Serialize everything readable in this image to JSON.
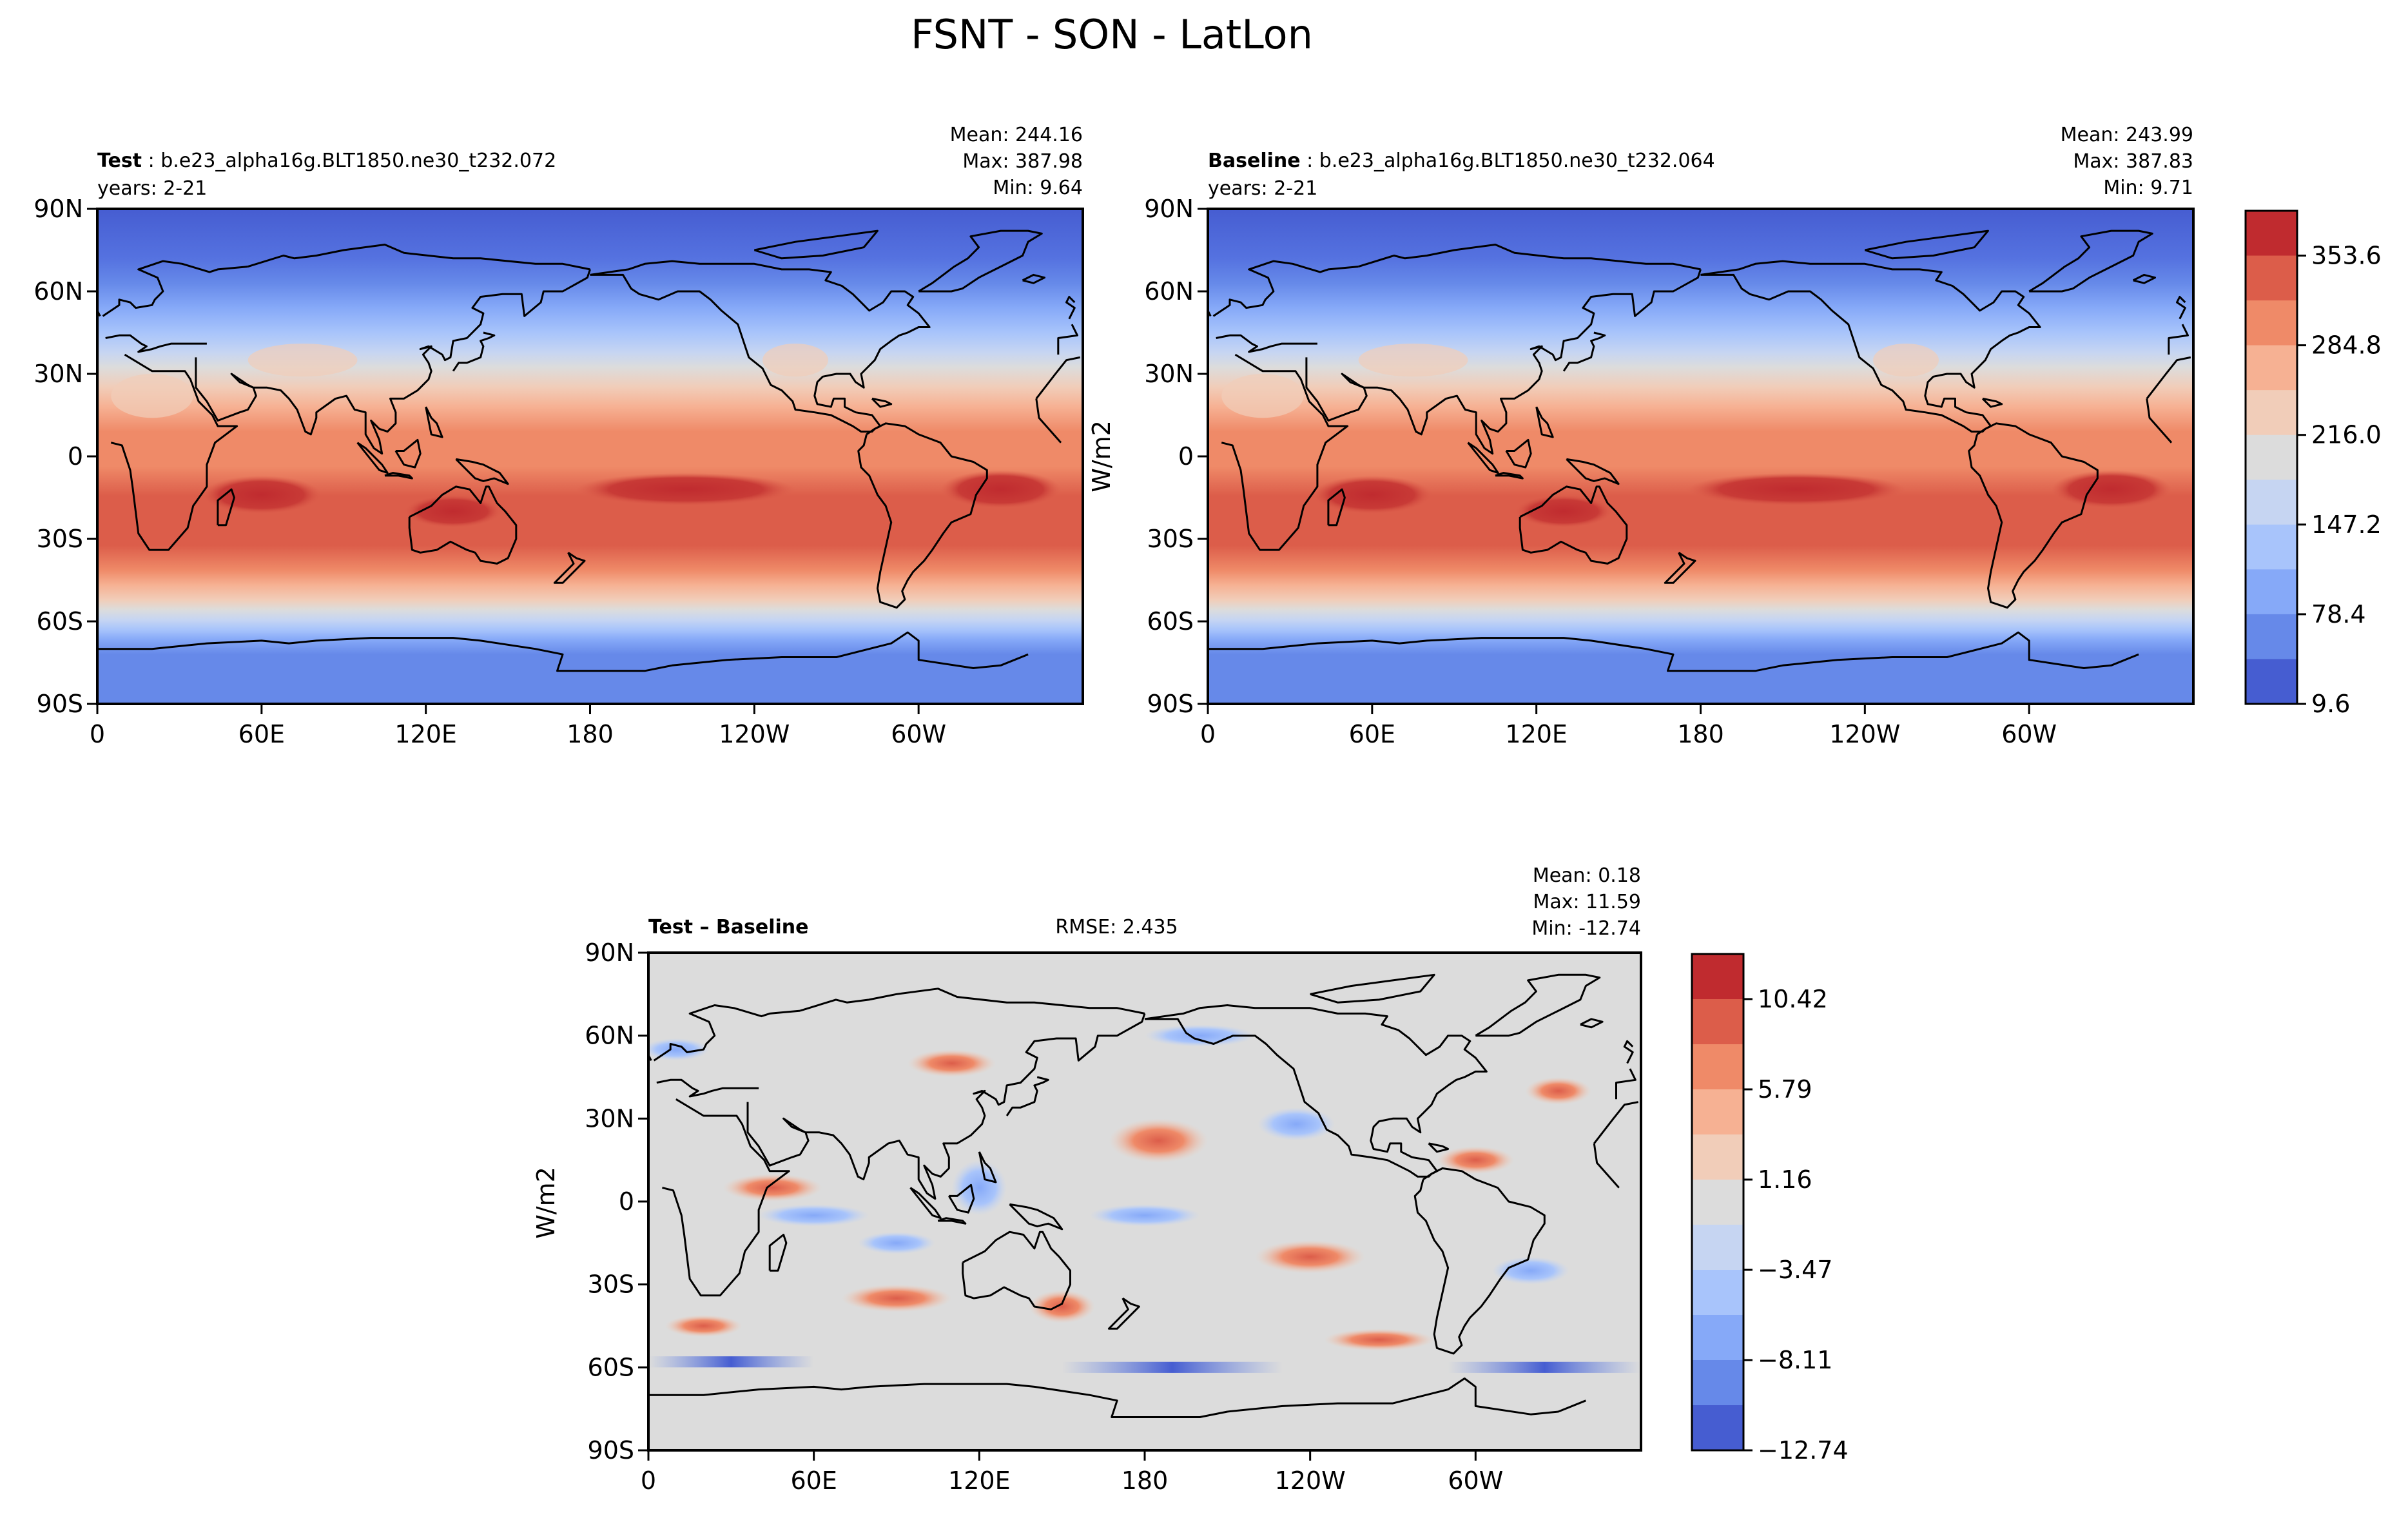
{
  "figure": {
    "title": "FSNT - SON - LatLon"
  },
  "chart_data": [
    {
      "type": "heatmap",
      "panel": "test",
      "label_bold": "Test",
      "label_rest": " : b.e23_alpha16g.BLT1850.ne30_t232.072",
      "years": "years: 2-21",
      "stats": [
        "Mean: 244.16",
        "Max: 387.98",
        "Min:  9.64"
      ],
      "units": "W/m2",
      "xlim": [
        0,
        360
      ],
      "ylim": [
        -90,
        90
      ],
      "xticks": [
        "0",
        "60E",
        "120E",
        "180",
        "120W",
        "60W"
      ],
      "yticks": [
        "90N",
        "60N",
        "30N",
        "0",
        "30S",
        "60S",
        "90S"
      ],
      "field": "zonal bands: ~20-40 W/m2 near poles, ~200-230 at mid-latitudes, ~300-370 in tropics; maxima in southern subtropical Indian Ocean, Australia, tropical Pacific and Atlantic"
    },
    {
      "type": "heatmap",
      "panel": "baseline",
      "label_bold": "Baseline",
      "label_rest": " : b.e23_alpha16g.BLT1850.ne30_t232.064",
      "years": "years: 2-21",
      "stats": [
        "Mean: 243.99",
        "Max: 387.83",
        "Min:  9.71"
      ],
      "units": "W/m2",
      "xlim": [
        0,
        360
      ],
      "ylim": [
        -90,
        90
      ],
      "xticks": [
        "0",
        "60E",
        "120E",
        "180",
        "120W",
        "60W"
      ],
      "yticks": [
        "90N",
        "60N",
        "30N",
        "0",
        "30S",
        "60S",
        "90S"
      ],
      "colorbar_ticks": [
        "353.6",
        "284.8",
        "216.0",
        "147.2",
        "78.4",
        "9.6"
      ],
      "colorbar_colors": [
        "#c02b2f",
        "#dc5d4a",
        "#ef8a68",
        "#f6b193",
        "#f1cdb9",
        "#dcdcdc",
        "#c6d5f2",
        "#a8c4fb",
        "#86a9f8",
        "#6689e9",
        "#465dd1"
      ]
    },
    {
      "type": "heatmap",
      "panel": "difference",
      "label_bold": "Test – Baseline",
      "rmse": "RMSE: 2.435",
      "stats": [
        "Mean:  0.18",
        "Max: 11.59",
        "Min: -12.74"
      ],
      "units": "W/m2",
      "xlim": [
        0,
        360
      ],
      "ylim": [
        -90,
        90
      ],
      "xticks": [
        "0",
        "60E",
        "120E",
        "180",
        "120W",
        "60W"
      ],
      "yticks": [
        "90N",
        "60N",
        "30N",
        "0",
        "30S",
        "60S",
        "90S"
      ],
      "colorbar_ticks": [
        "10.42",
        "5.79",
        "1.16",
        "−3.47",
        "−8.11",
        "−12.74"
      ],
      "colorbar_colors": [
        "#c02b2f",
        "#dc5d4a",
        "#ef8a68",
        "#f6b193",
        "#f1cdb9",
        "#dcdcdc",
        "#c6d5f2",
        "#a8c4fb",
        "#86a9f8",
        "#6689e9",
        "#465dd1"
      ],
      "field": "mostly near-zero (grey) with scattered ±1-6 W/m2 patches; positive maximum ~+10 W/m2 in North Pacific near 180, 20-30N; negative bands ~-10 W/m2 near 55-60S"
    }
  ]
}
